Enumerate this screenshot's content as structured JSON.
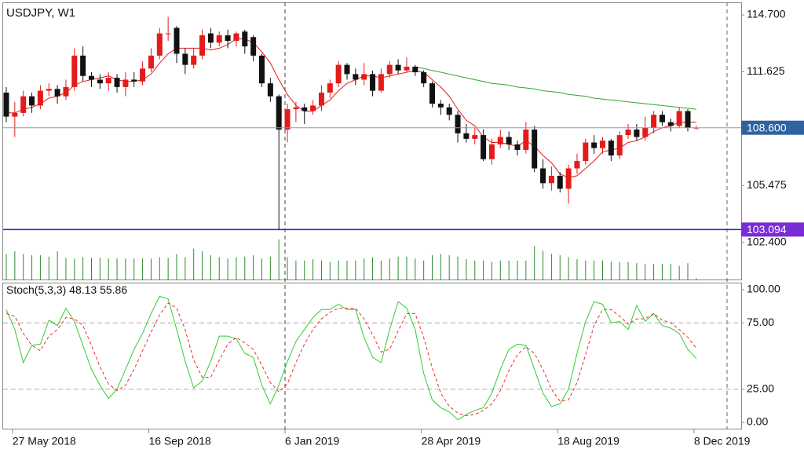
{
  "chart_data": [
    {
      "type": "candlestick",
      "title": "USDJPY, W1",
      "categories": [
        null,
        "27 May 2018",
        null,
        null,
        null,
        null,
        null,
        null,
        null,
        null,
        null,
        null,
        null,
        null,
        null,
        null,
        null,
        "16 Sep 2018",
        null,
        null,
        null,
        null,
        null,
        null,
        null,
        null,
        null,
        null,
        null,
        null,
        null,
        null,
        null,
        "6 Jan 2019",
        null,
        null,
        null,
        null,
        null,
        null,
        null,
        null,
        null,
        null,
        null,
        null,
        null,
        null,
        null,
        "28 Apr 2019",
        null,
        null,
        null,
        null,
        null,
        null,
        null,
        null,
        null,
        null,
        null,
        null,
        null,
        null,
        null,
        "18 Aug 2019",
        null,
        null,
        null,
        null,
        null,
        null,
        null,
        null,
        null,
        null,
        null,
        null,
        null,
        null,
        null,
        "8 Dec 2019"
      ],
      "open": [
        110.5,
        109.2,
        109.4,
        110.3,
        109.8,
        110.6,
        110.7,
        110.3,
        110.8,
        112.5,
        111.4,
        111.2,
        111.0,
        111.3,
        110.8,
        111.2,
        111.1,
        111.8,
        112.5,
        113.7,
        114.0,
        112.6,
        112.0,
        112.5,
        113.7,
        113.2,
        113.6,
        113.3,
        113.8,
        113.5,
        112.5,
        111.0,
        110.3,
        108.5,
        109.6,
        109.7,
        109.5,
        109.8,
        110.5,
        111.0,
        112.0,
        111.5,
        111.2,
        111.5,
        110.6,
        111.5,
        112.0,
        111.7,
        111.9,
        111.6,
        111.0,
        109.9,
        109.7,
        109.3,
        108.3,
        108.0,
        108.2,
        106.9,
        107.7,
        108.1,
        107.7,
        107.4,
        108.5,
        106.4,
        105.6,
        106.0,
        105.3,
        106.4,
        106.8,
        107.8,
        107.5,
        107.9,
        107.1,
        108.2,
        108.5,
        108.1,
        108.6,
        109.3,
        108.9,
        108.7,
        109.5,
        108.6
      ],
      "high": [
        110.8,
        110.0,
        110.6,
        110.5,
        110.9,
        111.0,
        110.9,
        111.2,
        112.9,
        113.0,
        111.6,
        111.5,
        111.6,
        111.5,
        111.6,
        111.6,
        112.2,
        112.9,
        114.0,
        114.6,
        114.1,
        112.9,
        112.9,
        113.9,
        114.0,
        113.8,
        113.9,
        113.8,
        113.9,
        113.6,
        112.6,
        111.3,
        110.4,
        109.9,
        110.0,
        109.9,
        110.1,
        110.9,
        111.2,
        112.2,
        112.1,
        111.8,
        112.1,
        111.7,
        111.8,
        112.2,
        112.3,
        112.4,
        112.0,
        111.7,
        111.1,
        110.1,
        109.9,
        109.5,
        108.8,
        108.6,
        108.5,
        108.0,
        108.5,
        108.4,
        107.9,
        108.9,
        108.7,
        106.9,
        106.5,
        106.2,
        106.6,
        107.2,
        108.0,
        108.2,
        108.1,
        108.0,
        108.4,
        108.8,
        108.8,
        109.2,
        109.5,
        109.5,
        109.1,
        109.7,
        109.6,
        108.7
      ],
      "low": [
        108.9,
        108.1,
        109.2,
        109.4,
        109.6,
        110.3,
        109.9,
        110.1,
        110.6,
        111.1,
        110.8,
        110.7,
        110.6,
        110.5,
        110.3,
        110.8,
        110.9,
        111.6,
        112.3,
        113.3,
        112.1,
        111.5,
        111.8,
        112.3,
        112.9,
        113.0,
        112.9,
        113.0,
        112.6,
        112.2,
        110.8,
        110.0,
        103.1,
        107.8,
        108.9,
        108.8,
        109.3,
        109.5,
        110.2,
        110.8,
        111.2,
        110.9,
        110.9,
        110.3,
        110.5,
        111.3,
        111.5,
        111.6,
        111.4,
        110.8,
        109.7,
        109.3,
        109.0,
        107.8,
        107.8,
        107.7,
        106.8,
        106.6,
        107.5,
        107.4,
        107.1,
        107.2,
        106.2,
        105.3,
        105.2,
        105.1,
        104.5,
        106.1,
        106.6,
        107.2,
        107.2,
        106.8,
        106.9,
        108.0,
        107.9,
        107.9,
        108.3,
        108.7,
        108.4,
        108.6,
        108.4,
        108.5
      ],
      "close": [
        109.2,
        109.4,
        110.3,
        109.8,
        110.6,
        110.7,
        110.3,
        110.8,
        112.5,
        111.4,
        111.2,
        111.0,
        111.3,
        110.8,
        111.2,
        111.1,
        111.8,
        112.5,
        113.7,
        113.7,
        112.6,
        112.0,
        112.5,
        113.6,
        113.2,
        113.6,
        113.3,
        113.7,
        113.0,
        112.5,
        111.0,
        110.3,
        108.5,
        109.6,
        109.7,
        109.5,
        109.8,
        110.5,
        111.0,
        112.0,
        111.5,
        111.2,
        111.5,
        110.6,
        111.5,
        112.0,
        111.7,
        111.9,
        111.6,
        111.0,
        109.9,
        109.7,
        109.3,
        108.3,
        108.0,
        108.2,
        106.9,
        107.7,
        108.1,
        107.7,
        107.4,
        108.5,
        106.4,
        105.6,
        106.0,
        105.3,
        106.4,
        106.8,
        107.8,
        107.5,
        107.9,
        107.1,
        108.2,
        108.5,
        108.1,
        108.6,
        109.3,
        108.9,
        108.7,
        109.5,
        108.6,
        108.6
      ],
      "up_color": "#e41b1b",
      "down_color": "#111111",
      "volume": [
        40,
        44,
        40,
        38,
        38,
        36,
        44,
        34,
        33,
        35,
        34,
        34,
        33,
        33,
        33,
        33,
        33,
        33,
        35,
        34,
        40,
        35,
        48,
        44,
        38,
        35,
        33,
        35,
        36,
        38,
        33,
        36,
        62,
        35,
        30,
        30,
        32,
        30,
        28,
        30,
        30,
        30,
        33,
        35,
        30,
        33,
        36,
        36,
        33,
        30,
        38,
        40,
        38,
        36,
        32,
        30,
        30,
        28,
        30,
        30,
        30,
        30,
        52,
        45,
        40,
        38,
        35,
        32,
        30,
        30,
        30,
        28,
        28,
        28,
        26,
        25,
        25,
        25,
        25,
        22,
        26,
        3
      ],
      "volume_color": "#2e8b2e",
      "ma_fast": {
        "color": "#e41b1b",
        "values": [
          109.4,
          109.4,
          109.6,
          109.7,
          109.9,
          110.2,
          110.3,
          110.5,
          110.9,
          111.1,
          111.2,
          111.3,
          111.4,
          111.2,
          111.1,
          111.1,
          111.2,
          111.5,
          112.1,
          112.6,
          112.9,
          112.9,
          112.9,
          112.9,
          112.8,
          112.9,
          113.1,
          113.4,
          113.4,
          113.2,
          112.7,
          112.1,
          111.2,
          110.4,
          109.8,
          109.5,
          109.5,
          109.8,
          110.1,
          110.6,
          111.0,
          111.2,
          111.4,
          111.4,
          111.3,
          111.4,
          111.5,
          111.6,
          111.7,
          111.6,
          111.2,
          110.8,
          110.3,
          109.6,
          109.0,
          108.7,
          108.1,
          107.8,
          107.8,
          107.7,
          107.6,
          107.9,
          107.6,
          107.1,
          106.7,
          106.1,
          105.9,
          106.0,
          106.4,
          106.8,
          107.3,
          107.4,
          107.5,
          107.8,
          107.9,
          108.1,
          108.4,
          108.6,
          108.7,
          108.9,
          108.9,
          108.9
        ]
      },
      "ma_slow": {
        "color": "#2ea82e",
        "values": [
          null,
          null,
          null,
          null,
          null,
          null,
          null,
          null,
          null,
          null,
          null,
          null,
          null,
          null,
          null,
          null,
          null,
          null,
          null,
          null,
          null,
          null,
          null,
          null,
          null,
          null,
          null,
          null,
          null,
          null,
          null,
          null,
          null,
          null,
          null,
          null,
          null,
          null,
          null,
          null,
          null,
          null,
          null,
          null,
          null,
          null,
          null,
          null,
          111.9,
          111.8,
          111.7,
          111.6,
          111.5,
          111.4,
          111.3,
          111.2,
          111.1,
          111.0,
          110.95,
          110.9,
          110.8,
          110.75,
          110.7,
          110.6,
          110.55,
          110.5,
          110.4,
          110.35,
          110.3,
          110.2,
          110.15,
          110.1,
          110.05,
          110.0,
          109.95,
          109.9,
          109.85,
          109.8,
          109.75,
          109.7,
          109.65,
          109.6
        ]
      },
      "price_line": {
        "value": 108.6,
        "label": "108.600",
        "color": "#7f9dbd",
        "box_color": "#2f62a0"
      },
      "level_line": {
        "value": 103.094,
        "color": "#2a22c8",
        "box_color": "#7a2bd8"
      },
      "ylim": [
        100.35,
        115.38
      ],
      "yticks": [
        {
          "value": 114.7,
          "label": "114.700"
        },
        111.625,
        105.475,
        {
          "value": 102.4,
          "label": "102.400"
        }
      ]
    },
    {
      "type": "line",
      "title": "Stoch(5,3,3)",
      "series": [
        {
          "color": "#33cc33",
          "values": [
            85,
            70,
            45,
            58,
            59,
            77,
            73,
            86,
            76,
            58,
            40,
            28,
            18,
            25,
            40,
            55,
            67,
            82,
            95,
            93,
            70,
            46,
            26,
            31,
            46,
            65,
            65,
            63,
            52,
            49,
            28,
            14,
            28,
            46,
            61,
            70,
            79,
            85,
            85,
            89,
            85,
            85,
            64,
            49,
            45,
            70,
            91,
            86,
            70,
            37,
            17,
            11,
            8,
            2,
            6,
            9,
            11,
            22,
            40,
            55,
            59,
            58,
            40,
            22,
            12,
            14,
            25,
            52,
            76,
            91,
            89,
            75,
            76,
            70,
            88,
            76,
            82,
            73,
            71,
            67,
            55,
            48.13
          ]
        },
        {
          "color": "#e83030",
          "dashed": true,
          "values": [
            82,
            80,
            67,
            58,
            54,
            65,
            70,
            79,
            78,
            73,
            58,
            42,
            29,
            24,
            28,
            40,
            54,
            68,
            81,
            90,
            86,
            70,
            47,
            34,
            34,
            47,
            59,
            64,
            60,
            55,
            43,
            30,
            23,
            29,
            45,
            59,
            70,
            78,
            83,
            86,
            86,
            86,
            78,
            66,
            53,
            55,
            69,
            82,
            82,
            64,
            41,
            22,
            12,
            7,
            5,
            6,
            9,
            14,
            24,
            39,
            51,
            57,
            52,
            40,
            25,
            16,
            17,
            30,
            51,
            73,
            85,
            85,
            80,
            74,
            78,
            78,
            82,
            77,
            75,
            70,
            64,
            55.86
          ]
        }
      ],
      "levels": [
        75,
        25
      ],
      "ylim": [
        -5.3,
        104.7
      ],
      "yticks": [
        {
          "value": 100,
          "label": "100.00"
        },
        {
          "value": 75,
          "label": "75.00"
        },
        {
          "value": 25,
          "label": "25.00"
        },
        {
          "value": 0,
          "label": "0.00"
        }
      ]
    }
  ]
}
